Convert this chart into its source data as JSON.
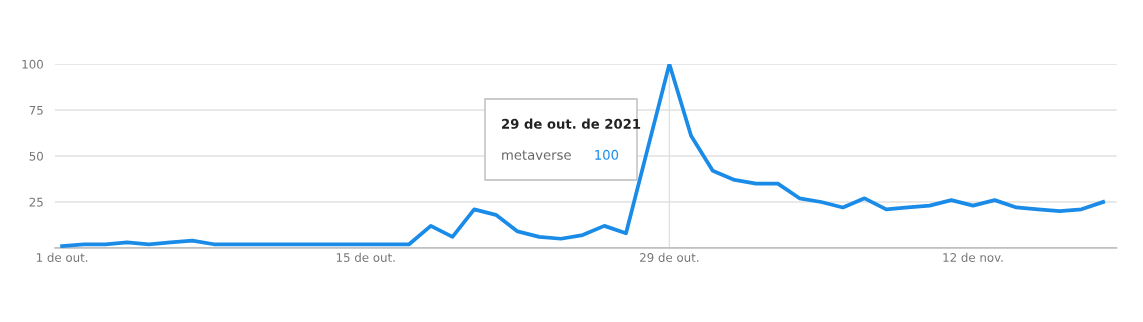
{
  "chart_data": {
    "type": "line",
    "x": [
      "2021-10-01",
      "2021-10-02",
      "2021-10-03",
      "2021-10-04",
      "2021-10-05",
      "2021-10-06",
      "2021-10-07",
      "2021-10-08",
      "2021-10-09",
      "2021-10-10",
      "2021-10-11",
      "2021-10-12",
      "2021-10-13",
      "2021-10-14",
      "2021-10-15",
      "2021-10-16",
      "2021-10-17",
      "2021-10-18",
      "2021-10-19",
      "2021-10-20",
      "2021-10-21",
      "2021-10-22",
      "2021-10-23",
      "2021-10-24",
      "2021-10-25",
      "2021-10-26",
      "2021-10-27",
      "2021-10-28",
      "2021-10-29",
      "2021-10-30",
      "2021-10-31",
      "2021-11-01",
      "2021-11-02",
      "2021-11-03",
      "2021-11-04",
      "2021-11-05",
      "2021-11-06",
      "2021-11-07",
      "2021-11-08",
      "2021-11-09",
      "2021-11-10",
      "2021-11-11",
      "2021-11-12",
      "2021-11-13",
      "2021-11-14",
      "2021-11-15",
      "2021-11-16",
      "2021-11-17",
      "2021-11-18"
    ],
    "series": [
      {
        "name": "metaverse",
        "color": "#1a8ce8",
        "values": [
          1,
          2,
          2,
          3,
          2,
          3,
          4,
          2,
          2,
          2,
          2,
          2,
          2,
          2,
          2,
          2,
          2,
          12,
          6,
          21,
          18,
          9,
          6,
          5,
          7,
          12,
          8,
          54,
          100,
          61,
          42,
          37,
          35,
          35,
          27,
          25,
          22,
          27,
          21,
          22,
          23,
          26,
          23,
          26,
          22,
          21,
          20,
          21,
          25
        ]
      }
    ],
    "xlim": [
      "2021-09-30T16:00",
      "2021-11-18T15:00"
    ],
    "xticks": [
      {
        "value": "2021-10-01",
        "label": "1 de out."
      },
      {
        "value": "2021-10-15",
        "label": "15 de out."
      },
      {
        "value": "2021-10-29",
        "label": "29 de out."
      },
      {
        "value": "2021-11-12",
        "label": "12 de nov."
      }
    ],
    "ylim": [
      0,
      100
    ],
    "yticks": [
      {
        "value": 0,
        "label": null
      },
      25,
      50,
      75,
      100
    ],
    "grid": "y",
    "legend": false,
    "marker": "none",
    "line_style": "solid",
    "ref_lines": [
      {
        "axis": "x",
        "value": "2021-10-29",
        "color": "#e0e0e0"
      }
    ],
    "annotations": [
      "29 de out. de 2021",
      "100"
    ]
  }
}
